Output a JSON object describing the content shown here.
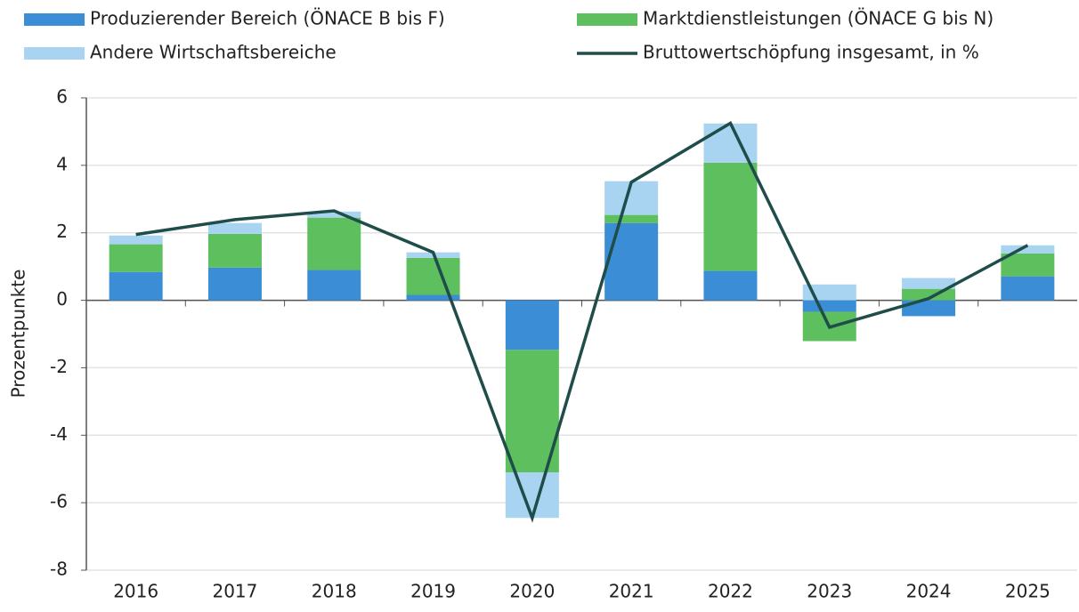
{
  "chart_data": {
    "type": "bar",
    "stacked": true,
    "y_axis_label": "Prozentpunkte",
    "categories": [
      "2016",
      "2017",
      "2018",
      "2019",
      "2020",
      "2021",
      "2022",
      "2023",
      "2024",
      "2025"
    ],
    "series": [
      {
        "name": "Produzierender Bereich (ÖNACE B bis F)",
        "color": "#3b8ed6",
        "values": [
          0.84,
          0.97,
          0.9,
          0.16,
          -1.47,
          2.29,
          0.87,
          -0.34,
          -0.47,
          0.71
        ]
      },
      {
        "name": "Marktdienstleistungen (ÖNACE G bis N)",
        "color": "#5dbf5e",
        "values": [
          0.82,
          1.0,
          1.55,
          1.1,
          -3.63,
          0.24,
          3.21,
          -0.87,
          0.34,
          0.68
        ]
      },
      {
        "name": "Andere Wirtschaftsbereiche",
        "color": "#a9d4f1",
        "values": [
          0.26,
          0.32,
          0.18,
          0.16,
          -1.35,
          1.0,
          1.16,
          0.47,
          0.32,
          0.24
        ]
      },
      {
        "name": "Bruttowertschöpfung insgesamt, in %",
        "color": "#1e4d4a",
        "type": "line",
        "values": [
          1.95,
          2.39,
          2.65,
          1.42,
          -6.45,
          3.5,
          5.25,
          -0.8,
          0.05,
          1.63
        ]
      }
    ],
    "ylim": [
      -8,
      6
    ],
    "yticks": [
      -8,
      -6,
      -4,
      -2,
      0,
      2,
      4,
      6
    ],
    "grid": true
  }
}
